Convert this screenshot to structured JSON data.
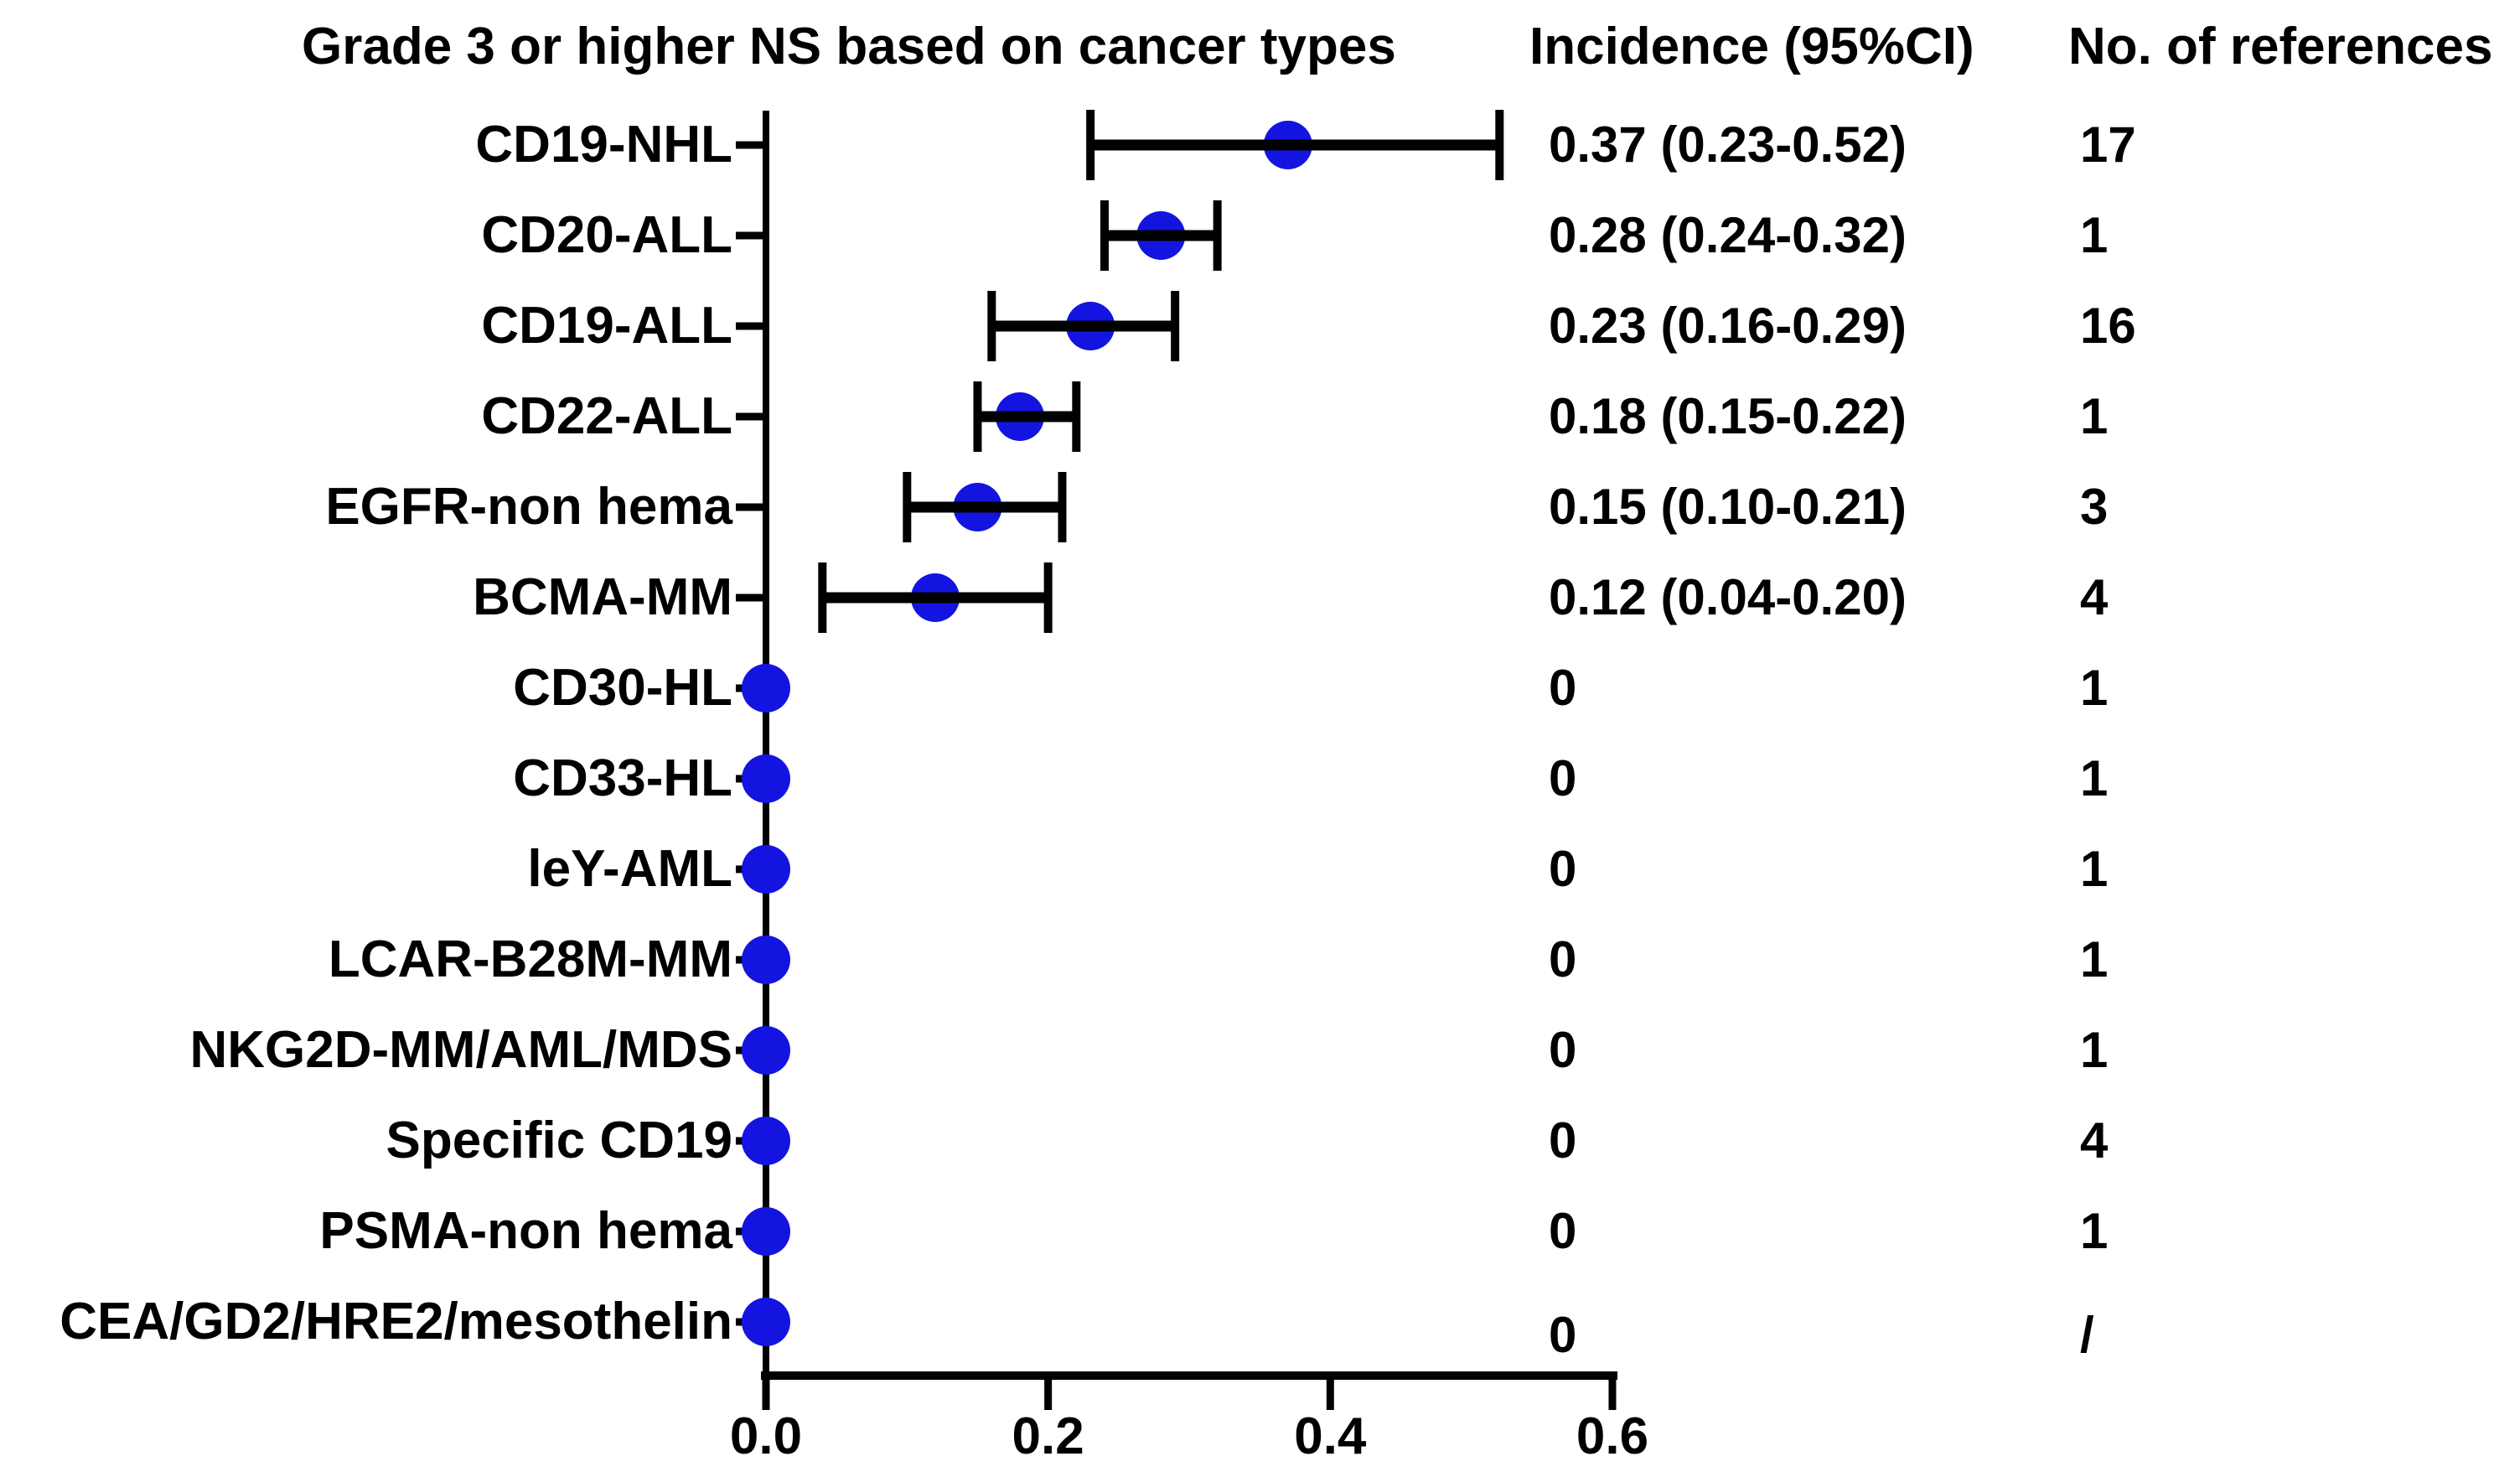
{
  "chart_data": {
    "type": "scatter",
    "variant": "forest-plot",
    "title": "Grade 3 or higher NS based on cancer types",
    "columns": {
      "incidence": "Incidence (95%CI)",
      "references": "No. of references"
    },
    "xlabel": "",
    "ylabel": "",
    "xlim": [
      0,
      0.6
    ],
    "x_ticks": [
      0,
      0.2,
      0.4,
      0.6
    ],
    "x_tick_labels": [
      "0.0",
      "0.2",
      "0.4",
      "0.6"
    ],
    "grid": false,
    "legend": "none",
    "colors": {
      "marker": "#1414E0",
      "line": "#000000",
      "text": "#000000",
      "background": "#ffffff"
    },
    "rows": [
      {
        "label": "CD19-NHL",
        "value": 0.37,
        "ci_low": 0.23,
        "ci_high": 0.52,
        "incidence_text": "0.37 (0.23-0.52)",
        "references": "17"
      },
      {
        "label": "CD20-ALL",
        "value": 0.28,
        "ci_low": 0.24,
        "ci_high": 0.32,
        "incidence_text": "0.28 (0.24-0.32)",
        "references": "1"
      },
      {
        "label": "CD19-ALL",
        "value": 0.23,
        "ci_low": 0.16,
        "ci_high": 0.29,
        "incidence_text": "0.23 (0.16-0.29)",
        "references": "16"
      },
      {
        "label": "CD22-ALL",
        "value": 0.18,
        "ci_low": 0.15,
        "ci_high": 0.22,
        "incidence_text": "0.18 (0.15-0.22)",
        "references": "1"
      },
      {
        "label": "EGFR-non hema",
        "value": 0.15,
        "ci_low": 0.1,
        "ci_high": 0.21,
        "incidence_text": "0.15 (0.10-0.21)",
        "references": "3"
      },
      {
        "label": "BCMA-MM",
        "value": 0.12,
        "ci_low": 0.04,
        "ci_high": 0.2,
        "incidence_text": "0.12 (0.04-0.20)",
        "references": "4"
      },
      {
        "label": "CD30-HL",
        "value": 0,
        "ci_low": null,
        "ci_high": null,
        "incidence_text": "0",
        "references": "1"
      },
      {
        "label": "CD33-HL",
        "value": 0,
        "ci_low": null,
        "ci_high": null,
        "incidence_text": "0",
        "references": "1"
      },
      {
        "label": "leY-AML",
        "value": 0,
        "ci_low": null,
        "ci_high": null,
        "incidence_text": "0",
        "references": "1"
      },
      {
        "label": "LCAR-B28M-MM",
        "value": 0,
        "ci_low": null,
        "ci_high": null,
        "incidence_text": "0",
        "references": "1"
      },
      {
        "label": "NKG2D-MM/AML/MDS",
        "value": 0,
        "ci_low": null,
        "ci_high": null,
        "incidence_text": "0",
        "references": "1"
      },
      {
        "label": "Specific CD19",
        "value": 0,
        "ci_low": null,
        "ci_high": null,
        "incidence_text": "0",
        "references": "4"
      },
      {
        "label": "PSMA-non hema",
        "value": 0,
        "ci_low": null,
        "ci_high": null,
        "incidence_text": "0",
        "references": "1"
      },
      {
        "label": "CEA/GD2/HRE2/mesothelin",
        "value": 0,
        "ci_low": null,
        "ci_high": null,
        "incidence_text": "0",
        "references": "/"
      }
    ]
  }
}
